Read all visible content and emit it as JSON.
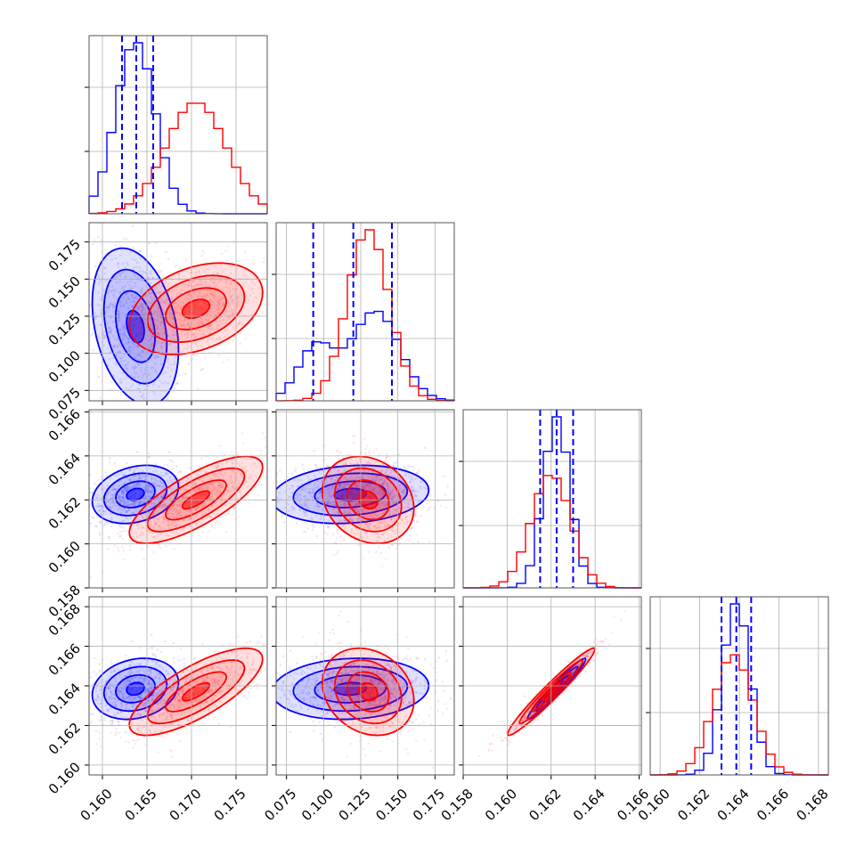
{
  "chart_data": {
    "type": "corner",
    "grid": true,
    "colors": {
      "blue": "#0000ff",
      "red": "#ff0000"
    },
    "series": [
      {
        "color": "#0000ff",
        "style": "histogram + scatter + filled contours"
      },
      {
        "color": "#ff0000",
        "style": "histogram + scatter + filled contours"
      }
    ],
    "params": [
      {
        "range": [
          0.1585,
          0.1785
        ],
        "ticks": [
          "0.160",
          "0.165",
          "0.170",
          "0.175"
        ],
        "blue": {
          "mean": 0.1637,
          "sd": 0.0022
        },
        "red": {
          "mean": 0.1705,
          "sd": 0.0034
        },
        "quantiles": [
          0.1622,
          0.1638,
          0.1657
        ]
      },
      {
        "range": [
          0.068,
          0.188
        ],
        "ticks": [
          "0.075",
          "0.100",
          "0.125",
          "0.150",
          "0.175"
        ],
        "blue": {
          "mean": 0.118,
          "sd": 0.024
        },
        "red": {
          "mean": 0.13,
          "sd": 0.014
        },
        "quantiles": [
          0.093,
          0.12,
          0.146
        ]
      },
      {
        "range": [
          0.158,
          0.1661
        ],
        "ticks": [
          "0.158",
          "0.160",
          "0.162",
          "0.164",
          "0.166"
        ],
        "blue": {
          "mean": 0.16225,
          "sd": 0.0006
        },
        "red": {
          "mean": 0.162,
          "sd": 0.0009
        },
        "quantiles": [
          0.1615,
          0.16225,
          0.163
        ]
      },
      {
        "range": [
          0.1595,
          0.1685
        ],
        "ticks": [
          "0.160",
          "0.162",
          "0.164",
          "0.166",
          "0.168"
        ],
        "blue": {
          "mean": 0.16385,
          "sd": 0.0007
        },
        "red": {
          "mean": 0.1637,
          "sd": 0.001
        },
        "quantiles": [
          0.1631,
          0.16385,
          0.1646
        ]
      }
    ],
    "ylabel_ticks": [
      null,
      [
        "0.075",
        "0.100",
        "0.125",
        "0.150",
        "0.175"
      ],
      [
        "0.158",
        "0.160",
        "0.162",
        "0.164",
        "0.166"
      ],
      [
        "0.160",
        "0.162",
        "0.164",
        "0.166",
        "0.168"
      ]
    ],
    "correlations": {
      "blue": {
        "0-1": -0.3,
        "0-2": 0.25,
        "0-3": 0.2,
        "1-2": 0.15,
        "1-3": 0.1,
        "2-3": 0.97
      },
      "red": {
        "0-1": 0.35,
        "0-2": 0.75,
        "0-3": 0.75,
        "1-2": -0.2,
        "1-3": -0.2,
        "2-3": 0.97
      }
    }
  }
}
